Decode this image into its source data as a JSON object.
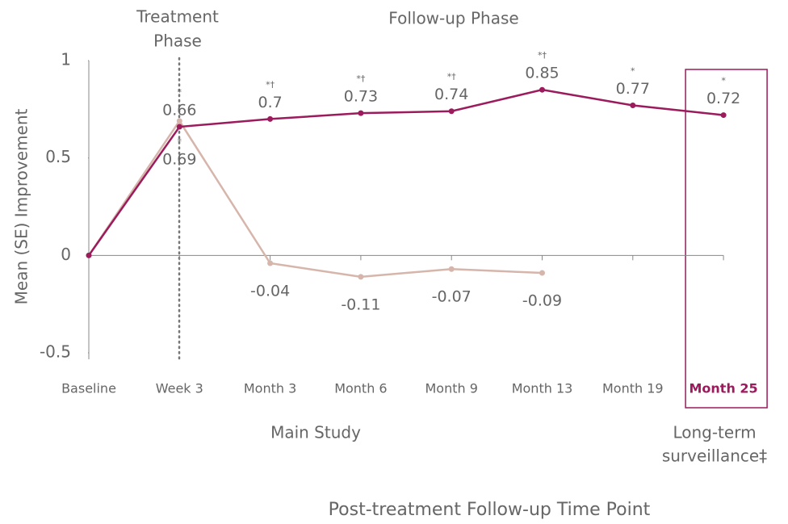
{
  "chart_data": {
    "type": "line",
    "y_label": "Mean (SE) Improvement",
    "x_label": "Post-treatment Follow-up Time Point",
    "treatment_phase": [
      "Treatment",
      "Phase"
    ],
    "followup_phase": "Follow-up Phase",
    "main_study": "Main Study",
    "long_term": [
      "Long-term",
      "surveillance‡"
    ],
    "categories": [
      "Baseline",
      "Week 3",
      "Month 3",
      "Month 6",
      "Month 9",
      "Month 13",
      "Month 19",
      "Month 25"
    ],
    "highlight_index": 7,
    "highlight_color": "#9b1b5c",
    "series": [
      {
        "color": "#9b1b5c",
        "values": [
          0,
          0.66,
          0.7,
          0.73,
          0.74,
          0.85,
          0.77,
          0.72
        ],
        "markers": [
          null,
          "*",
          "*†",
          "*†",
          "*†",
          "*†",
          "*",
          "*"
        ]
      },
      {
        "color": "#d6b5ab",
        "values": [
          0,
          0.69,
          -0.04,
          -0.11,
          -0.07,
          -0.09,
          null,
          null
        ],
        "markers": [
          null,
          "*",
          null,
          null,
          null,
          null,
          null,
          null
        ]
      }
    ],
    "ylim": [
      -0.5,
      1
    ],
    "yticks": [
      -0.5,
      0,
      0.5,
      1
    ]
  }
}
